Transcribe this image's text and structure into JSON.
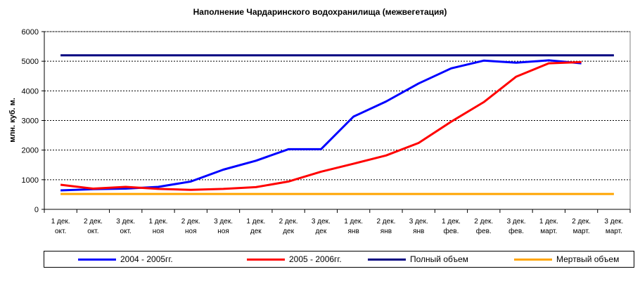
{
  "chart_data": {
    "type": "line",
    "title": "Наполнение Чардаринского водохранилища (межвегетация)",
    "ylabel": "млн. куб. м.",
    "xlabel": "",
    "ylim": [
      0,
      6000
    ],
    "yticks": [
      0,
      1000,
      2000,
      3000,
      4000,
      5000,
      6000
    ],
    "grid": true,
    "legend_position": "bottom",
    "categories": [
      [
        "1 дек.",
        "окт."
      ],
      [
        "2 дек.",
        "окт."
      ],
      [
        "3 дек.",
        "окт."
      ],
      [
        "1 дек.",
        "ноя"
      ],
      [
        "2 дек.",
        "ноя"
      ],
      [
        "3 дек.",
        "ноя"
      ],
      [
        "1 дек.",
        "дек"
      ],
      [
        "2 дек.",
        "дек"
      ],
      [
        "3 дек.",
        "дек"
      ],
      [
        "1 дек.",
        "янв"
      ],
      [
        "2 дек.",
        "янв"
      ],
      [
        "3 дек.",
        "янв"
      ],
      [
        "1 дек.",
        "фев."
      ],
      [
        "2 дек.",
        "фев."
      ],
      [
        "3 дек.",
        "фев."
      ],
      [
        "1 дек.",
        "март."
      ],
      [
        "2 дек.",
        "март."
      ],
      [
        "3 дек.",
        "март."
      ]
    ],
    "series": [
      {
        "name": "2004 - 2005гг.",
        "color": "#0000ff",
        "values": [
          640,
          680,
          700,
          760,
          940,
          1340,
          1640,
          2030,
          2030,
          3130,
          3640,
          4250,
          4760,
          5020,
          4950,
          5030,
          4930,
          null
        ]
      },
      {
        "name": "2005 - 2006гг.",
        "color": "#ff0000",
        "values": [
          830,
          700,
          760,
          690,
          660,
          690,
          750,
          940,
          1270,
          1540,
          1820,
          2240,
          2960,
          3620,
          4480,
          4930,
          4970,
          null
        ]
      },
      {
        "name": "Полный объем",
        "color": "#000080",
        "values": [
          5200,
          5200,
          5200,
          5200,
          5200,
          5200,
          5200,
          5200,
          5200,
          5200,
          5200,
          5200,
          5200,
          5200,
          5200,
          5200,
          5200,
          5200
        ]
      },
      {
        "name": "Мертвый объем",
        "color": "#ffa500",
        "values": [
          520,
          520,
          520,
          520,
          520,
          520,
          520,
          520,
          520,
          520,
          520,
          520,
          520,
          520,
          520,
          520,
          520,
          520
        ]
      }
    ]
  }
}
